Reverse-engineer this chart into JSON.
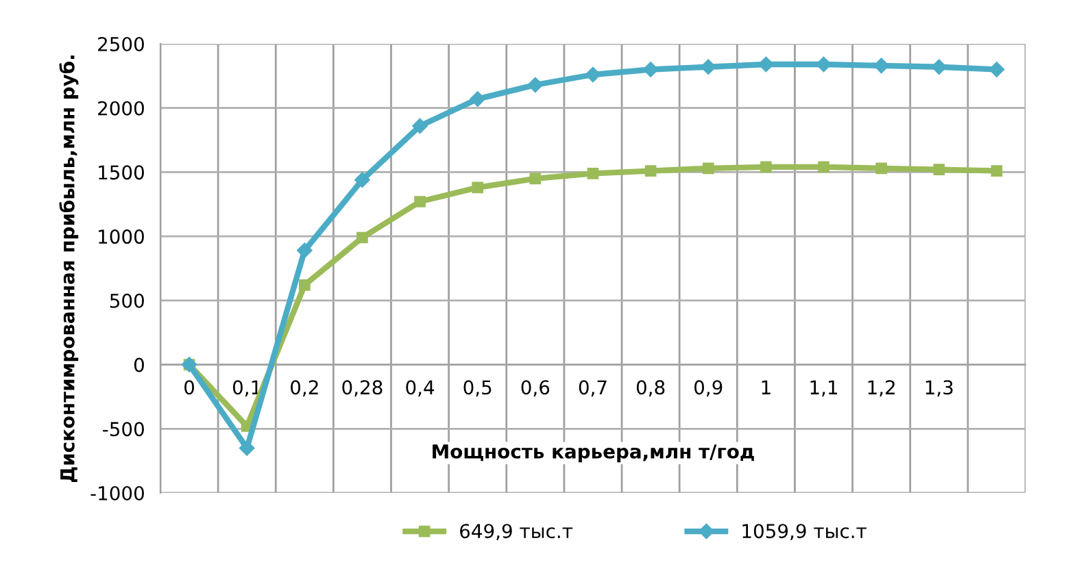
{
  "chart_data": {
    "type": "line",
    "xlabel": "Мощность карьера,млн т/год",
    "ylabel": "Дисконтимрованная прибыль,млн руб.",
    "categories": [
      "0",
      "0,1",
      "0,2",
      "0,28",
      "0,4",
      "0,5",
      "0,6",
      "0,7",
      "0,8",
      "0,9",
      "1",
      "1,1",
      "1,2",
      "1,3",
      null
    ],
    "series": [
      {
        "name": "649,9 тыс.т",
        "color": "#9bbb59",
        "marker": "square",
        "values": [
          0,
          -480,
          620,
          990,
          1270,
          1380,
          1450,
          1490,
          1510,
          1530,
          1540,
          1540,
          1530,
          1520,
          1510
        ]
      },
      {
        "name": "1059,9 тыс.т",
        "color": "#4bacc6",
        "marker": "diamond",
        "values": [
          0,
          -650,
          890,
          1440,
          1860,
          2070,
          2180,
          2260,
          2300,
          2320,
          2340,
          2340,
          2330,
          2320,
          2300
        ]
      }
    ],
    "ylim": [
      -1000,
      2500
    ],
    "yticks": [
      -1000,
      -500,
      0,
      500,
      1000,
      1500,
      2000,
      2500
    ],
    "grid": true,
    "legend": "bottom",
    "line_style": "solid"
  }
}
